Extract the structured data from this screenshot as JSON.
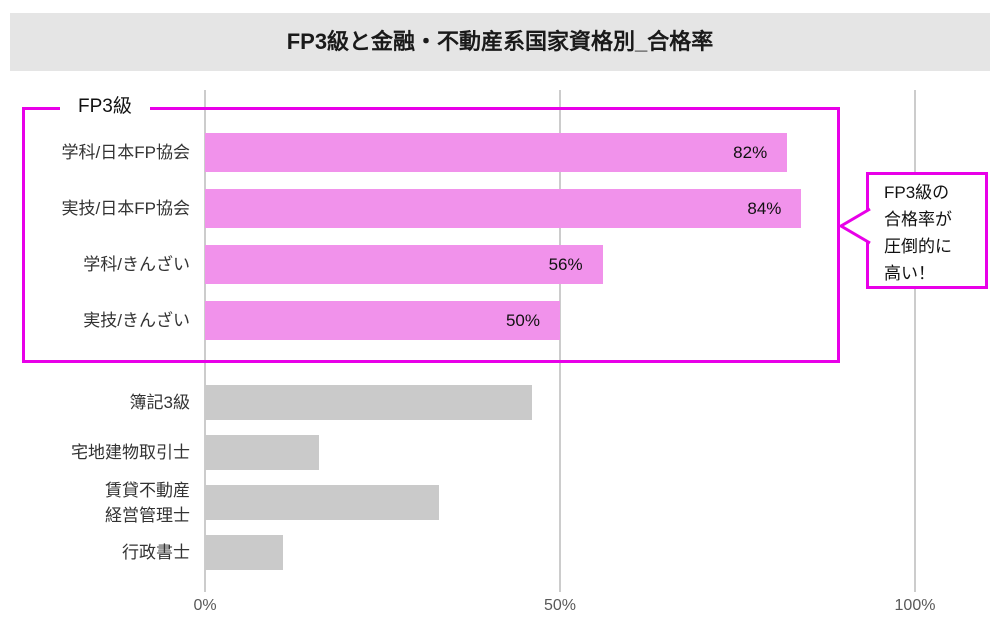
{
  "title": "FP3級と金融・不動産系国家資格別_合格率",
  "group_box_label": "FP3級",
  "callout": {
    "text": "FP3級の\n合格率が\n圧倒的に\n高い！"
  },
  "axis": {
    "tick_labels": [
      "0%",
      "50%",
      "100%"
    ]
  },
  "rows": [
    {
      "label": "学科/日本FP協会",
      "value_label": "82%",
      "group": "fp3"
    },
    {
      "label": "実技/日本FP協会",
      "value_label": "84%",
      "group": "fp3"
    },
    {
      "label": "学科/きんざい",
      "value_label": "56%",
      "group": "fp3"
    },
    {
      "label": "実技/きんざい",
      "value_label": "50%",
      "group": "fp3"
    },
    {
      "label": "簿記3級",
      "value_label": "",
      "group": "other"
    },
    {
      "label": "宅地建物取引士",
      "value_label": "",
      "group": "other"
    },
    {
      "label": "賃貸不動産\n経営管理士",
      "value_label": "",
      "group": "other"
    },
    {
      "label": "行政書士",
      "value_label": "",
      "group": "other"
    }
  ],
  "colors": {
    "fp3_bar": "#F192EB",
    "other_bar": "#CACACA",
    "accent_magenta": "#E800E8",
    "banner_bg": "#E5E5E5",
    "gridline": "#CCCCCC"
  },
  "chart_data": {
    "type": "bar",
    "orientation": "horizontal",
    "title": "FP3級と金融・不動産系国家資格別_合格率",
    "categories": [
      "学科/日本FP協会",
      "実技/日本FP協会",
      "学科/きんざい",
      "実技/きんざい",
      "簿記3級",
      "宅地建物取引士",
      "賃貸不動産経営管理士",
      "行政書士"
    ],
    "values": [
      82,
      84,
      56,
      50,
      46,
      16,
      33,
      11
    ],
    "value_labels_shown": [
      "82%",
      "84%",
      "56%",
      "50%",
      null,
      null,
      null,
      null
    ],
    "groups": [
      "FP3級",
      "FP3級",
      "FP3級",
      "FP3級",
      "その他",
      "その他",
      "その他",
      "その他"
    ],
    "group_highlight_label": "FP3級",
    "annotation": "FP3級の合格率が圧倒的に高い！",
    "xlim": [
      0,
      100
    ],
    "x_tick_labels": [
      "0%",
      "50%",
      "100%"
    ],
    "grid": true,
    "legend": false
  }
}
